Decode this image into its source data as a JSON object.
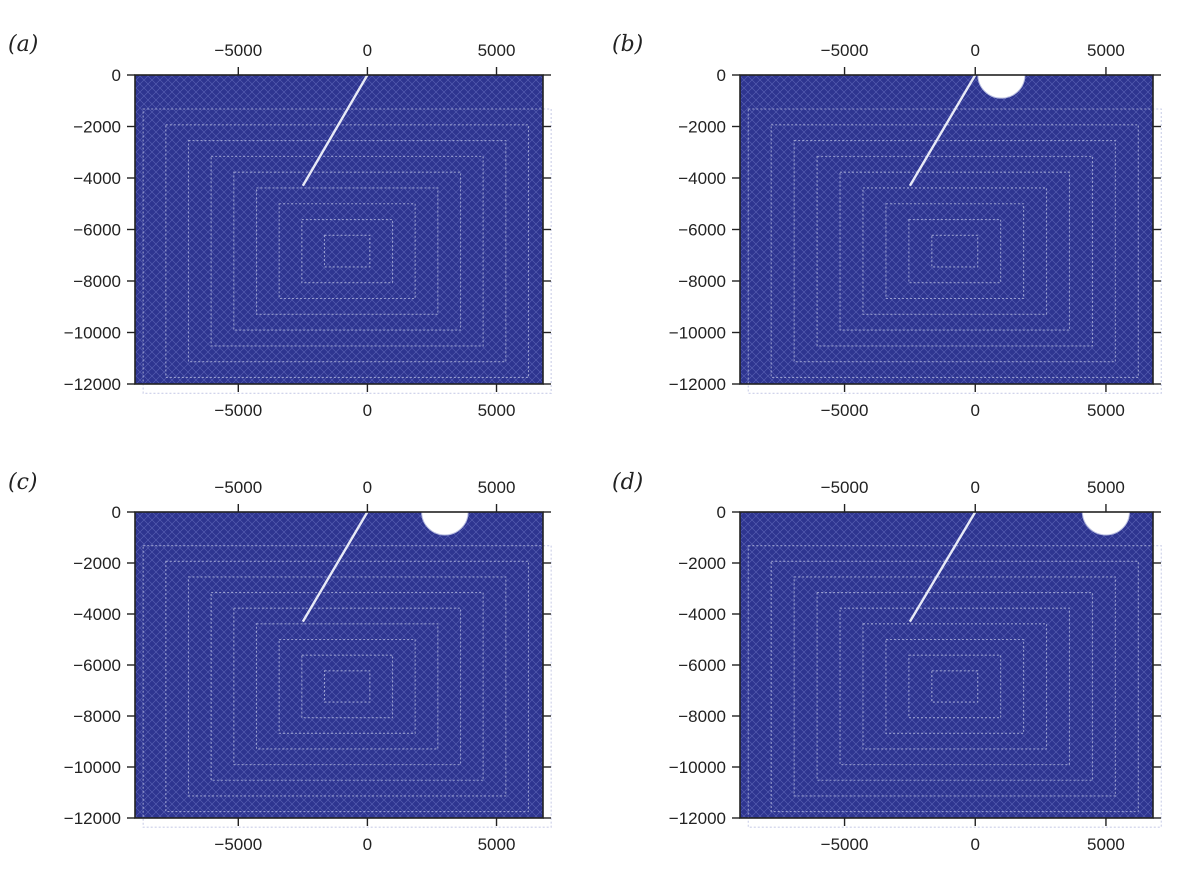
{
  "figure": {
    "panels": [
      {
        "id": "a",
        "label": "(a)",
        "cavity_center_x": null
      },
      {
        "id": "b",
        "label": "(b)",
        "cavity_center_x": 1000
      },
      {
        "id": "c",
        "label": "(c)",
        "cavity_center_x": 3000
      },
      {
        "id": "d",
        "label": "(d)",
        "cavity_center_x": 5000
      }
    ]
  },
  "chart_data": {
    "type": "mesh-panels",
    "x_range": [
      -9000,
      6800
    ],
    "y_range": [
      -12000,
      0
    ],
    "x_ticks": [
      -5000,
      0,
      5000
    ],
    "x_tick_labels": [
      "−5000",
      "0",
      "5000"
    ],
    "y_ticks": [
      0,
      -2000,
      -4000,
      -6000,
      -8000,
      -10000,
      -12000
    ],
    "y_tick_labels": [
      "0",
      "−2000",
      "−4000",
      "−6000",
      "−8000",
      "−10000",
      "−12000"
    ],
    "fault_line": {
      "x": [
        0,
        -2500
      ],
      "y": [
        0,
        -4300
      ]
    },
    "cavity_radius": 900,
    "colors": {
      "mesh_fill": "#2e3590",
      "mesh_line": "#b8bde0",
      "axis": "#222222",
      "background": "#ffffff"
    }
  }
}
